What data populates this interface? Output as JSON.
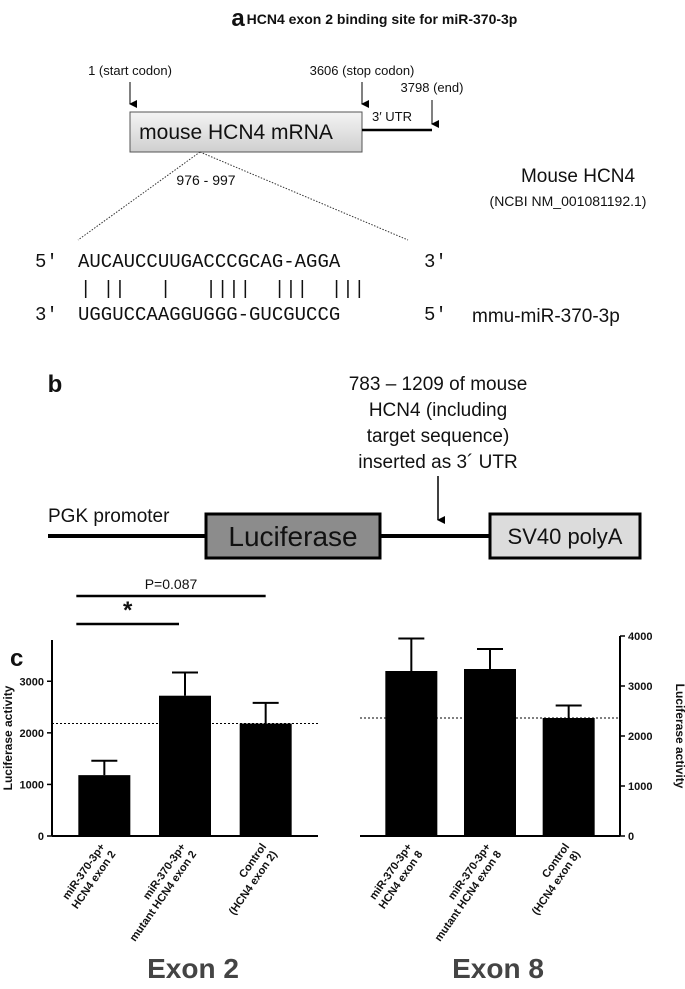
{
  "panel_a": {
    "label": "a",
    "title": "HCN4 exon 2 binding site for miR-370-3p",
    "start": "1 (start codon)",
    "stop": "3606 (stop codon)",
    "end": "3798 (end)",
    "utr": "3′ UTR",
    "mrna": "mouse HCN4 mRNA",
    "range": "976 - 997",
    "species": "Mouse HCN4",
    "accession": "(NCBI NM_001081192.1)",
    "seq_top_5": "5′",
    "seq_top": "AUCAUCCUUGACCCGCAG-AGGA",
    "seq_top_3": "3′",
    "pairs": "| ||   |   ||||  |||  |||",
    "seq_bottom_3": "3′",
    "seq_bottom": "UGGUCCAAGGUGGG-GUCGUCCG",
    "seq_bottom_5": "5′",
    "mirna": "mmu-miR-370-3p"
  },
  "panel_b": {
    "label": "b",
    "insert": [
      "783 – 1209 of mouse",
      "HCN4 (including",
      "target sequence)",
      "inserted as 3´ UTR"
    ],
    "promoter": "PGK promoter",
    "luciferase": "Luciferase",
    "polya": "SV40 polyA"
  },
  "panel_c_label": "c",
  "chart_data": [
    {
      "type": "bar",
      "title": "Exon 2",
      "y_label": "Luciferase activity",
      "color": "#000000",
      "categories": [
        [
          "miR-370-3p+",
          "HCN4 exon 2"
        ],
        [
          "miR-370-3p+",
          "mutant HCN4 exon 2"
        ],
        [
          "Control",
          "(HCN4 exon 2)"
        ]
      ],
      "values": [
        1180,
        2720,
        2180
      ],
      "errors": [
        280,
        450,
        400
      ],
      "reference": 2180,
      "ylim": [
        0,
        3800
      ],
      "yticks": [
        0,
        1000,
        2000,
        3000
      ],
      "axis_side": "left",
      "annotations": [
        "*",
        "P=0.087"
      ]
    },
    {
      "type": "bar",
      "title": "Exon 8",
      "y_label": "Luciferase activity",
      "color": "#000000",
      "categories": [
        [
          "miR-370-3p+",
          "HCN4 exon 8"
        ],
        [
          "miR-370-3p+",
          "mutant HCN4 exon 8"
        ],
        [
          "Control",
          "(HCN4 exon 8)"
        ]
      ],
      "values": [
        3300,
        3340,
        2360
      ],
      "errors": [
        650,
        400,
        250
      ],
      "reference": 2360,
      "ylim": [
        0,
        4000
      ],
      "yticks": [
        0,
        1000,
        2000,
        3000,
        4000
      ],
      "axis_side": "right"
    }
  ]
}
